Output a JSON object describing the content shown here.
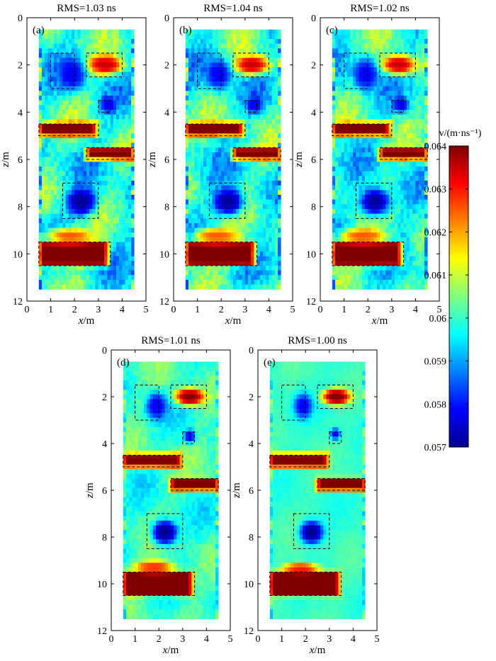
{
  "figure_type": "velocity tomography panels",
  "colorbar": {
    "label": "v/(m·ns⁻¹)",
    "min": 0.057,
    "max": 0.064,
    "ticks": [
      "0.064",
      "0.063",
      "0.062",
      "0.061",
      "0.06",
      "0.059",
      "0.058",
      "0.057"
    ],
    "colors": [
      "#00008f",
      "#0000ff",
      "#0080ff",
      "#00ffff",
      "#80ff80",
      "#ffff00",
      "#ff8000",
      "#ff0000",
      "#800000"
    ]
  },
  "chart_data": [
    {
      "type": "heatmap",
      "label": "(a)",
      "title": "RMS=1.03 ns",
      "xlabel": "x",
      "xunit": "/m",
      "ylabel": "z",
      "yunit": "/m",
      "xlim": [
        0,
        5
      ],
      "ylim": [
        0,
        12
      ],
      "xticks": [
        "0",
        "1",
        "2",
        "3",
        "4",
        "5"
      ],
      "yticks": [
        "0",
        "2",
        "4",
        "6",
        "8",
        "10",
        "12"
      ],
      "background_velocity": 0.0598,
      "noise": 0.7,
      "anomalies": [
        {
          "shape": "ellipse",
          "cx": 3.3,
          "cz": 2.0,
          "rx": 0.75,
          "rz": 0.42,
          "v": 0.0635
        },
        {
          "shape": "ellipse",
          "cx": 1.9,
          "cz": 2.4,
          "rx": 0.55,
          "rz": 0.7,
          "v": 0.0578
        },
        {
          "shape": "ellipse",
          "cx": 3.4,
          "cz": 3.7,
          "rx": 0.35,
          "rz": 0.35,
          "v": 0.0578
        },
        {
          "shape": "rect",
          "x0": 0.5,
          "x1": 2.9,
          "z0": 4.45,
          "z1": 5.0,
          "v": 0.0642
        },
        {
          "shape": "rect",
          "x0": 2.5,
          "x1": 4.5,
          "z0": 5.5,
          "z1": 6.0,
          "v": 0.064
        },
        {
          "shape": "ellipse",
          "cx": 2.3,
          "cz": 7.8,
          "rx": 0.65,
          "rz": 0.6,
          "v": 0.0571
        },
        {
          "shape": "rect",
          "x0": 0.5,
          "x1": 3.4,
          "z0": 9.5,
          "z1": 10.5,
          "v": 0.0642
        },
        {
          "shape": "ellipse",
          "cx": 1.8,
          "cz": 9.25,
          "rx": 1.0,
          "rz": 0.35,
          "v": 0.0625
        }
      ],
      "outlines": [
        {
          "x0": 1.0,
          "x1": 2.0,
          "z0": 1.5,
          "z1": 3.0
        },
        {
          "x0": 2.5,
          "x1": 4.0,
          "z0": 1.5,
          "z1": 2.5
        },
        {
          "x0": 3.0,
          "x1": 3.5,
          "z0": 3.5,
          "z1": 4.0
        },
        {
          "x0": 0.5,
          "x1": 3.0,
          "z0": 4.5,
          "z1": 5.0
        },
        {
          "x0": 2.5,
          "x1": 4.5,
          "z0": 5.5,
          "z1": 6.0
        },
        {
          "x0": 1.5,
          "x1": 3.0,
          "z0": 7.0,
          "z1": 8.5
        },
        {
          "x0": 0.5,
          "x1": 3.5,
          "z0": 9.5,
          "z1": 10.5
        }
      ]
    },
    {
      "type": "heatmap",
      "label": "(b)",
      "title": "RMS=1.04 ns",
      "xlabel": "x",
      "xunit": "/m",
      "ylabel": "z",
      "yunit": "/m",
      "xlim": [
        0,
        5
      ],
      "ylim": [
        0,
        12
      ],
      "xticks": [
        "0",
        "1",
        "2",
        "3",
        "4",
        "5"
      ],
      "yticks": [
        "0",
        "2",
        "4",
        "6",
        "8",
        "10",
        "12"
      ],
      "background_velocity": 0.0598,
      "noise": 0.7,
      "anomalies": [
        {
          "shape": "ellipse",
          "cx": 3.3,
          "cz": 2.0,
          "rx": 0.75,
          "rz": 0.42,
          "v": 0.0635
        },
        {
          "shape": "ellipse",
          "cx": 1.9,
          "cz": 2.4,
          "rx": 0.55,
          "rz": 0.7,
          "v": 0.0578
        },
        {
          "shape": "ellipse",
          "cx": 3.4,
          "cz": 3.7,
          "rx": 0.35,
          "rz": 0.35,
          "v": 0.0578
        },
        {
          "shape": "rect",
          "x0": 0.5,
          "x1": 2.9,
          "z0": 4.45,
          "z1": 5.0,
          "v": 0.0642
        },
        {
          "shape": "rect",
          "x0": 2.5,
          "x1": 4.5,
          "z0": 5.5,
          "z1": 6.0,
          "v": 0.064
        },
        {
          "shape": "ellipse",
          "cx": 2.3,
          "cz": 7.8,
          "rx": 0.65,
          "rz": 0.6,
          "v": 0.0571
        },
        {
          "shape": "rect",
          "x0": 0.5,
          "x1": 3.4,
          "z0": 9.5,
          "z1": 10.5,
          "v": 0.0642
        },
        {
          "shape": "ellipse",
          "cx": 1.8,
          "cz": 9.25,
          "rx": 1.0,
          "rz": 0.35,
          "v": 0.0625
        }
      ],
      "outlines": [
        {
          "x0": 1.0,
          "x1": 2.0,
          "z0": 1.5,
          "z1": 3.0
        },
        {
          "x0": 2.5,
          "x1": 4.0,
          "z0": 1.5,
          "z1": 2.5
        },
        {
          "x0": 3.0,
          "x1": 3.5,
          "z0": 3.5,
          "z1": 4.0
        },
        {
          "x0": 0.5,
          "x1": 3.0,
          "z0": 4.5,
          "z1": 5.0
        },
        {
          "x0": 2.5,
          "x1": 4.5,
          "z0": 5.5,
          "z1": 6.0
        },
        {
          "x0": 1.5,
          "x1": 3.0,
          "z0": 7.0,
          "z1": 8.5
        },
        {
          "x0": 0.5,
          "x1": 3.5,
          "z0": 9.5,
          "z1": 10.5
        }
      ]
    },
    {
      "type": "heatmap",
      "label": "(c)",
      "title": "RMS=1.02 ns",
      "xlabel": "x",
      "xunit": "/m",
      "ylabel": "z",
      "yunit": "/m",
      "xlim": [
        0,
        5
      ],
      "ylim": [
        0,
        12
      ],
      "xticks": [
        "0",
        "1",
        "2",
        "3",
        "4",
        "5"
      ],
      "yticks": [
        "0",
        "2",
        "4",
        "6",
        "8",
        "10",
        "12"
      ],
      "background_velocity": 0.0598,
      "noise": 0.65,
      "anomalies": [
        {
          "shape": "ellipse",
          "cx": 3.3,
          "cz": 2.0,
          "rx": 0.75,
          "rz": 0.42,
          "v": 0.0635
        },
        {
          "shape": "ellipse",
          "cx": 1.9,
          "cz": 2.4,
          "rx": 0.55,
          "rz": 0.7,
          "v": 0.0578
        },
        {
          "shape": "ellipse",
          "cx": 3.4,
          "cz": 3.7,
          "rx": 0.35,
          "rz": 0.35,
          "v": 0.0578
        },
        {
          "shape": "rect",
          "x0": 0.5,
          "x1": 2.9,
          "z0": 4.45,
          "z1": 5.0,
          "v": 0.0642
        },
        {
          "shape": "rect",
          "x0": 2.5,
          "x1": 4.5,
          "z0": 5.5,
          "z1": 6.0,
          "v": 0.064
        },
        {
          "shape": "ellipse",
          "cx": 2.3,
          "cz": 7.8,
          "rx": 0.65,
          "rz": 0.6,
          "v": 0.0571
        },
        {
          "shape": "rect",
          "x0": 0.5,
          "x1": 3.4,
          "z0": 9.5,
          "z1": 10.5,
          "v": 0.0642
        },
        {
          "shape": "ellipse",
          "cx": 1.8,
          "cz": 9.25,
          "rx": 1.0,
          "rz": 0.35,
          "v": 0.0625
        }
      ],
      "outlines": [
        {
          "x0": 1.0,
          "x1": 2.0,
          "z0": 1.5,
          "z1": 3.0
        },
        {
          "x0": 2.5,
          "x1": 4.0,
          "z0": 1.5,
          "z1": 2.5
        },
        {
          "x0": 3.0,
          "x1": 3.5,
          "z0": 3.5,
          "z1": 4.0
        },
        {
          "x0": 0.5,
          "x1": 3.0,
          "z0": 4.5,
          "z1": 5.0
        },
        {
          "x0": 2.5,
          "x1": 4.5,
          "z0": 5.5,
          "z1": 6.0
        },
        {
          "x0": 1.5,
          "x1": 3.0,
          "z0": 7.0,
          "z1": 8.5
        },
        {
          "x0": 0.5,
          "x1": 3.5,
          "z0": 9.5,
          "z1": 10.5
        }
      ]
    },
    {
      "type": "heatmap",
      "label": "(d)",
      "title": "RMS=1.01 ns",
      "xlabel": "x",
      "xunit": "/m",
      "ylabel": "z",
      "yunit": "/m",
      "xlim": [
        0,
        5
      ],
      "ylim": [
        0,
        12
      ],
      "xticks": [
        "0",
        "1",
        "2",
        "3",
        "4",
        "5"
      ],
      "yticks": [
        "0",
        "2",
        "4",
        "6",
        "8",
        "10",
        "12"
      ],
      "background_velocity": 0.06,
      "noise": 0.4,
      "anomalies": [
        {
          "shape": "ellipse",
          "cx": 3.3,
          "cz": 2.0,
          "rx": 0.65,
          "rz": 0.38,
          "v": 0.064
        },
        {
          "shape": "ellipse",
          "cx": 1.9,
          "cz": 2.4,
          "rx": 0.45,
          "rz": 0.6,
          "v": 0.0578
        },
        {
          "shape": "ellipse",
          "cx": 3.3,
          "cz": 3.7,
          "rx": 0.25,
          "rz": 0.3,
          "v": 0.0578
        },
        {
          "shape": "rect",
          "x0": 0.5,
          "x1": 2.9,
          "z0": 4.45,
          "z1": 5.0,
          "v": 0.0645
        },
        {
          "shape": "rect",
          "x0": 2.5,
          "x1": 4.5,
          "z0": 5.5,
          "z1": 6.0,
          "v": 0.0643
        },
        {
          "shape": "ellipse",
          "cx": 2.25,
          "cz": 7.8,
          "rx": 0.55,
          "rz": 0.55,
          "v": 0.057
        },
        {
          "shape": "rect",
          "x0": 0.5,
          "x1": 3.4,
          "z0": 9.5,
          "z1": 10.5,
          "v": 0.0645
        },
        {
          "shape": "ellipse",
          "cx": 1.8,
          "cz": 9.3,
          "rx": 0.9,
          "rz": 0.3,
          "v": 0.0628
        }
      ],
      "outlines": [
        {
          "x0": 1.0,
          "x1": 2.0,
          "z0": 1.5,
          "z1": 3.0
        },
        {
          "x0": 2.5,
          "x1": 4.0,
          "z0": 1.5,
          "z1": 2.5
        },
        {
          "x0": 3.0,
          "x1": 3.5,
          "z0": 3.5,
          "z1": 4.0
        },
        {
          "x0": 0.5,
          "x1": 3.0,
          "z0": 4.5,
          "z1": 5.0
        },
        {
          "x0": 2.5,
          "x1": 4.5,
          "z0": 5.5,
          "z1": 6.0
        },
        {
          "x0": 1.5,
          "x1": 3.0,
          "z0": 7.0,
          "z1": 8.5
        },
        {
          "x0": 0.5,
          "x1": 3.5,
          "z0": 9.5,
          "z1": 10.5
        }
      ]
    },
    {
      "type": "heatmap",
      "label": "(e)",
      "title": "RMS=1.00 ns",
      "xlabel": "x",
      "xunit": "/m",
      "ylabel": "z",
      "yunit": "/m",
      "xlim": [
        0,
        5
      ],
      "ylim": [
        0,
        12
      ],
      "xticks": [
        "0",
        "1",
        "2",
        "3",
        "4",
        "5"
      ],
      "yticks": [
        "0",
        "2",
        "4",
        "6",
        "8",
        "10",
        "12"
      ],
      "background_velocity": 0.06,
      "noise": 0.15,
      "anomalies": [
        {
          "shape": "ellipse",
          "cx": 3.3,
          "cz": 2.0,
          "rx": 0.6,
          "rz": 0.35,
          "v": 0.0642
        },
        {
          "shape": "ellipse",
          "cx": 1.9,
          "cz": 2.4,
          "rx": 0.4,
          "rz": 0.55,
          "v": 0.0578
        },
        {
          "shape": "ellipse",
          "cx": 3.25,
          "cz": 3.6,
          "rx": 0.22,
          "rz": 0.25,
          "v": 0.0578
        },
        {
          "shape": "rect",
          "x0": 0.5,
          "x1": 2.9,
          "z0": 4.45,
          "z1": 5.0,
          "v": 0.0646
        },
        {
          "shape": "rect",
          "x0": 2.5,
          "x1": 4.5,
          "z0": 5.5,
          "z1": 6.0,
          "v": 0.0645
        },
        {
          "shape": "ellipse",
          "cx": 2.25,
          "cz": 7.8,
          "rx": 0.5,
          "rz": 0.5,
          "v": 0.057
        },
        {
          "shape": "rect",
          "x0": 0.5,
          "x1": 3.4,
          "z0": 9.5,
          "z1": 10.5,
          "v": 0.0646
        },
        {
          "shape": "ellipse",
          "cx": 1.8,
          "cz": 9.35,
          "rx": 0.8,
          "rz": 0.25,
          "v": 0.063
        }
      ],
      "outlines": [
        {
          "x0": 1.0,
          "x1": 2.0,
          "z0": 1.5,
          "z1": 3.0
        },
        {
          "x0": 2.5,
          "x1": 4.0,
          "z0": 1.5,
          "z1": 2.5
        },
        {
          "x0": 3.0,
          "x1": 3.5,
          "z0": 3.5,
          "z1": 4.0
        },
        {
          "x0": 0.5,
          "x1": 3.0,
          "z0": 4.5,
          "z1": 5.0
        },
        {
          "x0": 2.5,
          "x1": 4.5,
          "z0": 5.5,
          "z1": 6.0
        },
        {
          "x0": 1.5,
          "x1": 3.0,
          "z0": 7.0,
          "z1": 8.5
        },
        {
          "x0": 0.5,
          "x1": 3.5,
          "z0": 9.5,
          "z1": 10.5
        }
      ]
    }
  ]
}
